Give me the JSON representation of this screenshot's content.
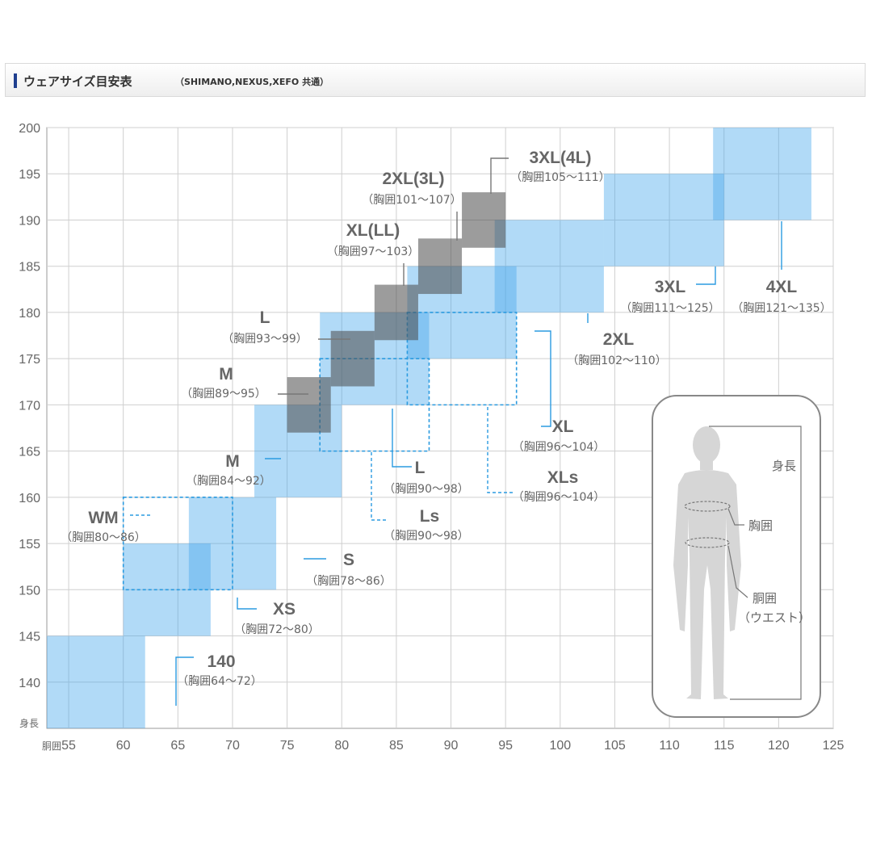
{
  "header": {
    "title": "ウェアサイズ目安表",
    "subtitle": "（SHIMANO,NEXUS,XEFO 共通）"
  },
  "chart_data": {
    "type": "heatmap",
    "title": "ウェアサイズ目安表",
    "subtitle": "（SHIMANO,NEXUS,XEFO 共通）",
    "xlabel": "胴囲",
    "ylabel": "身長",
    "xlim": [
      53,
      125
    ],
    "ylim": [
      135,
      200
    ],
    "xticks": [
      55,
      60,
      65,
      70,
      75,
      80,
      85,
      90,
      95,
      100,
      105,
      110,
      115,
      120,
      125
    ],
    "yticks": [
      140,
      145,
      150,
      155,
      160,
      165,
      170,
      175,
      180,
      185,
      190,
      195,
      200
    ],
    "grid": true,
    "sizes": [
      {
        "name": "140",
        "chest": "（胸囲64〜72）",
        "waist": [
          53,
          62
        ],
        "height": [
          135,
          145
        ],
        "style": "blue"
      },
      {
        "name": "XS",
        "chest": "（胸囲72〜80）",
        "waist": [
          60,
          68
        ],
        "height": [
          145,
          155
        ],
        "style": "blue"
      },
      {
        "name": "S",
        "chest": "（胸囲78〜86）",
        "waist": [
          66,
          74
        ],
        "height": [
          150,
          160
        ],
        "style": "blue"
      },
      {
        "name": "M",
        "chest": "（胸囲84〜92）",
        "waist": [
          72,
          80
        ],
        "height": [
          160,
          170
        ],
        "style": "blue"
      },
      {
        "name": "L",
        "chest": "（胸囲90〜98）",
        "waist": [
          78,
          88
        ],
        "height": [
          170,
          180
        ],
        "style": "blue"
      },
      {
        "name": "XL",
        "chest": "（胸囲96〜104）",
        "waist": [
          86,
          96
        ],
        "height": [
          175,
          185
        ],
        "style": "blue"
      },
      {
        "name": "2XL",
        "chest": "（胸囲102〜110）",
        "waist": [
          94,
          104
        ],
        "height": [
          180,
          190
        ],
        "style": "blue"
      },
      {
        "name": "3XL",
        "chest": "（胸囲111〜125）",
        "waist": [
          104,
          115
        ],
        "height": [
          185,
          195
        ],
        "style": "blue"
      },
      {
        "name": "4XL",
        "chest": "（胸囲121〜135）",
        "waist": [
          114,
          123
        ],
        "height": [
          190,
          200
        ],
        "style": "blue"
      },
      {
        "name": "WM",
        "chest": "（胸囲80〜86）",
        "waist": [
          60,
          70
        ],
        "height": [
          150,
          160
        ],
        "style": "dashed"
      },
      {
        "name": "Ls",
        "chest": "（胸囲90〜98）",
        "waist": [
          78,
          88
        ],
        "height": [
          165,
          175
        ],
        "style": "dashed"
      },
      {
        "name": "XLs",
        "chest": "（胸囲96〜104）",
        "waist": [
          86,
          96
        ],
        "height": [
          170,
          180
        ],
        "style": "dashed"
      },
      {
        "name": "M",
        "chest": "（胸囲89〜95）",
        "waist": [
          75,
          79
        ],
        "height": [
          167,
          173
        ],
        "style": "gray"
      },
      {
        "name": "L",
        "chest": "（胸囲93〜99）",
        "waist": [
          79,
          83
        ],
        "height": [
          172,
          178
        ],
        "style": "gray"
      },
      {
        "name": "XL(LL)",
        "chest": "（胸囲97〜103）",
        "waist": [
          83,
          87
        ],
        "height": [
          177,
          183
        ],
        "style": "gray"
      },
      {
        "name": "2XL(3L)",
        "chest": "（胸囲101〜107）",
        "waist": [
          87,
          91
        ],
        "height": [
          182,
          188
        ],
        "style": "gray"
      },
      {
        "name": "3XL(4L)",
        "chest": "（胸囲105〜111）",
        "waist": [
          91,
          95
        ],
        "height": [
          187,
          193
        ],
        "style": "gray"
      }
    ]
  },
  "figure": {
    "height_label": "身長",
    "chest_label": "胸囲",
    "waist_label": "胴囲",
    "waist_label_sub": "（ウエスト）"
  }
}
